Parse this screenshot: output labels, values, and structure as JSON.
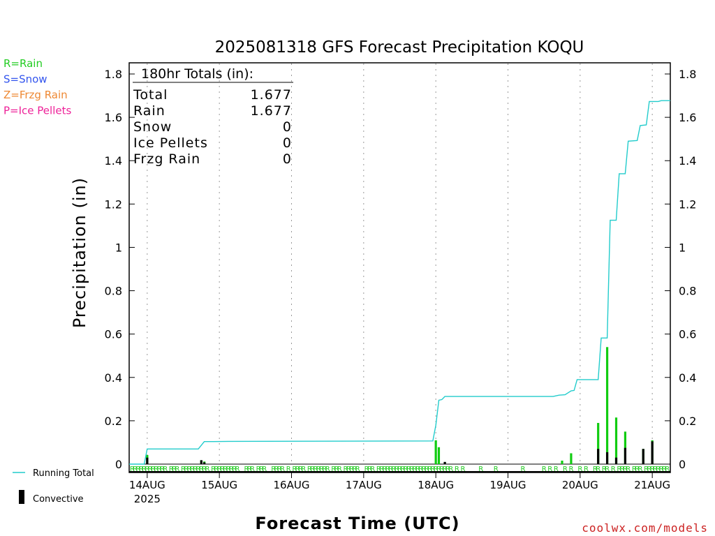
{
  "title": "2025081318 GFS Forecast Precipitation KOQU",
  "watermark": "coolwx.com/models",
  "legend_types": [
    {
      "label": "R=Rain",
      "color": "#22cc22"
    },
    {
      "label": "S=Snow",
      "color": "#3355ee"
    },
    {
      "label": "Z=Frzg Rain",
      "color": "#ee8833"
    },
    {
      "label": "P=Ice Pellets",
      "color": "#ee2299"
    }
  ],
  "legend_bottom": {
    "running_total": "Running Total",
    "convective": "Convective"
  },
  "totals": {
    "header": "180hr Totals (in):",
    "rows": [
      {
        "label": "Total",
        "value": "1.677"
      },
      {
        "label": "Rain",
        "value": "1.677"
      },
      {
        "label": "Snow",
        "value": "0"
      },
      {
        "label": "Ice Pellets",
        "value": "0"
      },
      {
        "label": "Frzg Rain",
        "value": "0"
      }
    ]
  },
  "chart_data": {
    "type": "bar",
    "title": "2025081318 GFS Forecast Precipitation KOQU",
    "xlabel": "Forecast Time (UTC)",
    "ylabel": "Precipitation (in)",
    "xlim_hours_from_14AUG00Z": [
      -6,
      174
    ],
    "ylim": [
      0,
      1.85
    ],
    "yticks": [
      0,
      0.2,
      0.4,
      0.6,
      0.8,
      1,
      1.2,
      1.4,
      1.6,
      1.8
    ],
    "ytick_labels": [
      "0",
      "0.2",
      "0.4",
      "0.6",
      "0.8",
      "1",
      "1.2",
      "1.4",
      "1.6",
      "1.8"
    ],
    "xticks": [
      {
        "hour": 0,
        "label": "14AUG",
        "sublabel": "2025"
      },
      {
        "hour": 24,
        "label": "15AUG"
      },
      {
        "hour": 48,
        "label": "16AUG"
      },
      {
        "hour": 72,
        "label": "17AUG"
      },
      {
        "hour": 96,
        "label": "18AUG"
      },
      {
        "hour": 120,
        "label": "19AUG"
      },
      {
        "hour": 144,
        "label": "20AUG"
      },
      {
        "hour": 168,
        "label": "21AUG"
      }
    ],
    "grid": "vertical dotted at day boundaries",
    "series": [
      {
        "name": "Running Total",
        "kind": "line",
        "color": "#22cccc",
        "points": [
          [
            -6,
            0
          ],
          [
            -1,
            0
          ],
          [
            0,
            0.07
          ],
          [
            17,
            0.07
          ],
          [
            19,
            0.104
          ],
          [
            22,
            0.104
          ],
          [
            27,
            0.105
          ],
          [
            95,
            0.107
          ],
          [
            96,
            0.18
          ],
          [
            97,
            0.295
          ],
          [
            98,
            0.298
          ],
          [
            99,
            0.312
          ],
          [
            135,
            0.312
          ],
          [
            137,
            0.318
          ],
          [
            139,
            0.32
          ],
          [
            141,
            0.338
          ],
          [
            142,
            0.34
          ],
          [
            143,
            0.39
          ],
          [
            150,
            0.39
          ],
          [
            151,
            0.582
          ],
          [
            153,
            0.582
          ],
          [
            154,
            1.125
          ],
          [
            156,
            1.125
          ],
          [
            157,
            1.34
          ],
          [
            159,
            1.34
          ],
          [
            160,
            1.49
          ],
          [
            163,
            1.493
          ],
          [
            164,
            1.562
          ],
          [
            166,
            1.565
          ],
          [
            167,
            1.673
          ],
          [
            170,
            1.673
          ],
          [
            171,
            1.677
          ],
          [
            174,
            1.677
          ]
        ]
      },
      {
        "name": "Rain",
        "kind": "bar",
        "color": "#11cc11",
        "bars": [
          [
            0,
            0.042
          ],
          [
            18,
            0.018
          ],
          [
            19,
            0.012
          ],
          [
            96,
            0.11
          ],
          [
            97,
            0.078
          ],
          [
            99,
            0.01
          ],
          [
            138,
            0.016
          ],
          [
            141,
            0.05
          ],
          [
            150,
            0.19
          ],
          [
            153,
            0.54
          ],
          [
            156,
            0.215
          ],
          [
            159,
            0.15
          ],
          [
            165,
            0.07
          ],
          [
            168,
            0.11
          ]
        ]
      },
      {
        "name": "Convective",
        "kind": "bar",
        "color": "#000000",
        "bars": [
          [
            0,
            0.03
          ],
          [
            18,
            0.018
          ],
          [
            19,
            0.008
          ],
          [
            99,
            0.01
          ],
          [
            150,
            0.07
          ],
          [
            153,
            0.055
          ],
          [
            156,
            0.03
          ],
          [
            159,
            0.075
          ],
          [
            165,
            0.07
          ],
          [
            168,
            0.105
          ]
        ]
      }
    ],
    "precip_type_markers": {
      "marker": "R",
      "hours": [
        -5,
        -4,
        -3,
        -2,
        -1,
        0,
        1,
        2,
        3,
        4,
        5,
        6,
        8,
        9,
        10,
        12,
        13,
        14,
        15,
        16,
        17,
        18,
        19,
        20,
        22,
        23,
        24,
        25,
        26,
        27,
        28,
        29,
        30,
        33,
        34,
        35,
        37,
        38,
        39,
        42,
        43,
        44,
        45,
        47,
        49,
        50,
        51,
        52,
        54,
        55,
        56,
        57,
        58,
        59,
        60,
        62,
        63,
        64,
        66,
        67,
        68,
        69,
        70,
        73,
        74,
        75,
        77,
        78,
        79,
        80,
        81,
        82,
        83,
        84,
        85,
        86,
        87,
        88,
        89,
        90,
        91,
        92,
        93,
        94,
        95,
        96,
        97,
        98,
        99,
        100,
        101,
        103,
        105,
        111,
        116,
        125,
        132,
        134,
        136,
        139,
        141,
        144,
        146,
        149,
        150,
        152,
        153,
        155,
        157,
        158,
        159,
        160,
        162,
        163,
        164,
        166,
        167,
        168,
        169,
        170,
        171,
        172,
        173
      ]
    }
  }
}
